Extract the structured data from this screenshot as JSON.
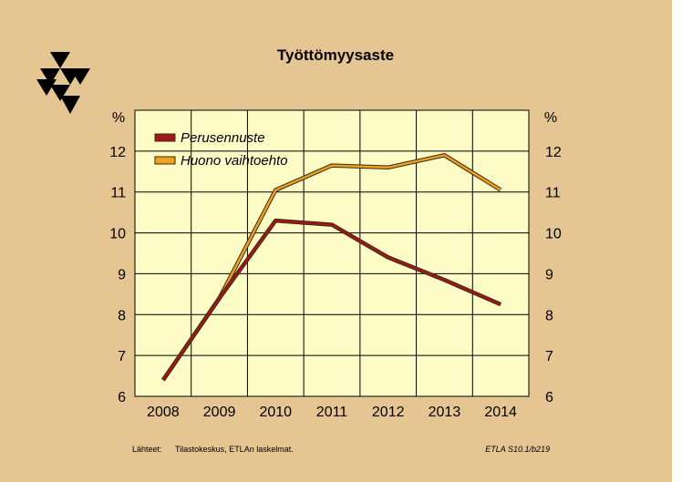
{
  "chart_data": {
    "type": "line",
    "title": "Työttömyysaste",
    "ylabel_left": "%",
    "ylabel_right": "%",
    "x": [
      "2008",
      "2009",
      "2010",
      "2011",
      "2012",
      "2013",
      "2014"
    ],
    "ylim": [
      6,
      13
    ],
    "yticks": [
      "6",
      "7",
      "8",
      "9",
      "10",
      "11",
      "12"
    ],
    "grid": true,
    "legend_position": "top-left",
    "series": [
      {
        "name": "Perusennuste",
        "color": "#a01818",
        "values": [
          6.4,
          8.4,
          10.3,
          10.2,
          9.4,
          8.85,
          8.25
        ]
      },
      {
        "name": "Huono vaihtoehto",
        "color": "#f0a020",
        "values": [
          6.4,
          8.4,
          11.05,
          11.65,
          11.6,
          11.9,
          11.05
        ]
      }
    ]
  },
  "footer": {
    "source_label": "Lähteet:",
    "source_text": "Tilastokeskus, ETLAn laskelmat.",
    "code": "ETLA S10.1/b219"
  },
  "logo": {
    "icon": "etla-triangles-logo"
  },
  "colors": {
    "background": "#e5c592",
    "plot_background": "#fdfbc6",
    "grid": "#000000"
  }
}
